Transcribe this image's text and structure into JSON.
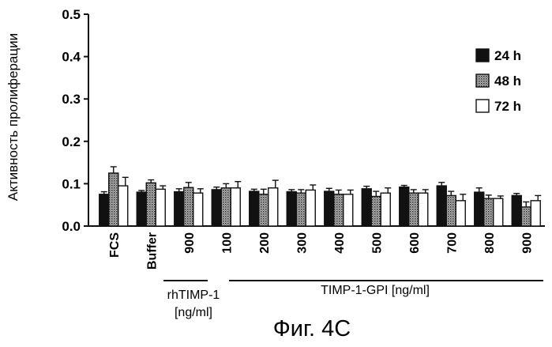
{
  "chart_data": {
    "type": "bar",
    "ylabel": "Активность пролиферации",
    "ylim": [
      0.0,
      0.5
    ],
    "yticks": [
      "0.0",
      "0.1",
      "0.2",
      "0.3",
      "0.4",
      "0.5"
    ],
    "categories": [
      "FCS",
      "Buffer",
      "900",
      "100",
      "200",
      "300",
      "400",
      "500",
      "600",
      "700",
      "800",
      "900"
    ],
    "series": [
      {
        "name": "24 h",
        "values": [
          0.075,
          0.08,
          0.081,
          0.086,
          0.082,
          0.081,
          0.082,
          0.088,
          0.092,
          0.095,
          0.08,
          0.072
        ]
      },
      {
        "name": "48 h",
        "values": [
          0.125,
          0.102,
          0.091,
          0.09,
          0.075,
          0.078,
          0.075,
          0.07,
          0.078,
          0.072,
          0.065,
          0.045
        ]
      },
      {
        "name": "72 h",
        "values": [
          0.095,
          0.087,
          0.078,
          0.09,
          0.09,
          0.085,
          0.075,
          0.078,
          0.078,
          0.06,
          0.065,
          0.06
        ]
      }
    ],
    "errors": [
      [
        0.006,
        0.004,
        0.007,
        0.006,
        0.005,
        0.005,
        0.007,
        0.006,
        0.004,
        0.008,
        0.01,
        0.005
      ],
      [
        0.015,
        0.007,
        0.012,
        0.01,
        0.012,
        0.008,
        0.01,
        0.012,
        0.008,
        0.01,
        0.008,
        0.012
      ],
      [
        0.02,
        0.008,
        0.01,
        0.015,
        0.018,
        0.012,
        0.01,
        0.012,
        0.008,
        0.015,
        0.006,
        0.012
      ]
    ],
    "group_labels": [
      {
        "text": "rhTIMP-1",
        "text2": "[ng/ml]"
      },
      {
        "text": "TIMP-1-GPI [ng/ml]"
      }
    ]
  },
  "colors": {
    "s24": "#111111",
    "s48": "#8a8a8a",
    "s72": "#ffffff"
  },
  "caption": "Фиг. 4C"
}
